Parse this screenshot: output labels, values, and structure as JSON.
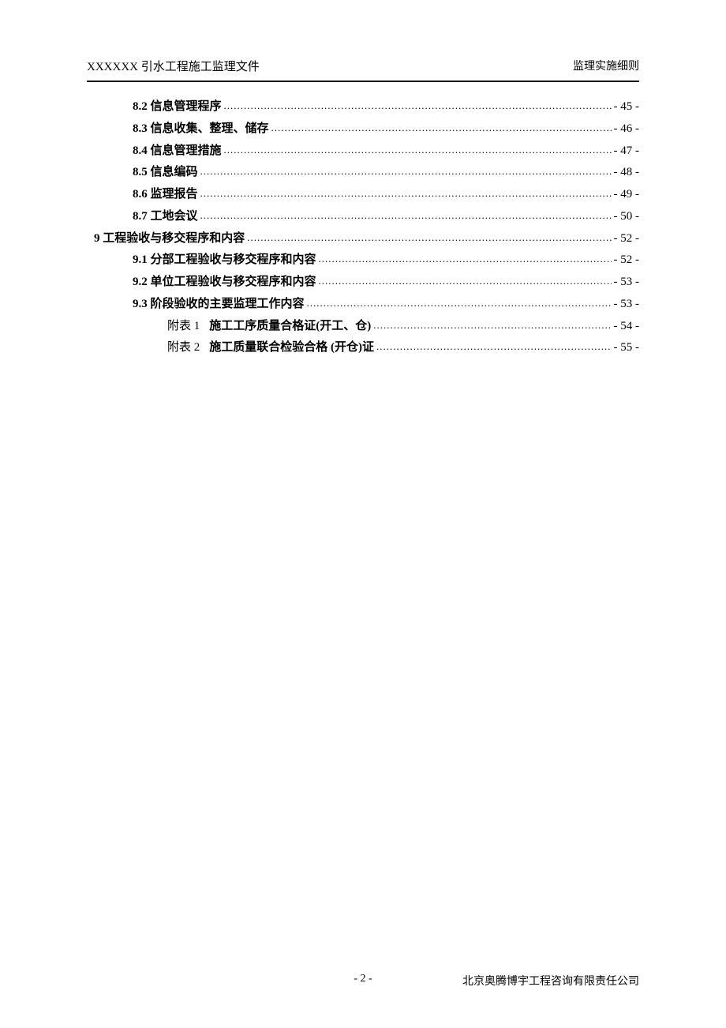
{
  "header": {
    "left": "XXXXXX 引水工程施工监理文件",
    "right": "监理实施细则"
  },
  "toc": [
    {
      "level": 1,
      "num": "8.2",
      "title": "信息管理程序",
      "page": "- 45 -",
      "bold": true
    },
    {
      "level": 1,
      "num": "8.3",
      "title": "信息收集、整理、储存",
      "page": "- 46 -",
      "bold": true
    },
    {
      "level": 1,
      "num": "8.4",
      "title": "信息管理措施",
      "page": "- 47 -",
      "bold": true
    },
    {
      "level": 1,
      "num": "8.5",
      "title": "信息编码",
      "page": "- 48 -",
      "bold": true
    },
    {
      "level": 1,
      "num": "8.6",
      "title": "监理报告",
      "page": "- 49 -",
      "bold": true
    },
    {
      "level": 1,
      "num": "8.7",
      "title": "工地会议",
      "page": "- 50 -",
      "bold": true
    },
    {
      "level": 0,
      "num": "9",
      "title": "工程验收与移交程序和内容",
      "page": "- 52 -",
      "bold": true
    },
    {
      "level": 1,
      "num": "9.1",
      "title": "分部工程验收与移交程序和内容",
      "page": "- 52 -",
      "bold": true
    },
    {
      "level": 1,
      "num": "9.2",
      "title": "单位工程验收与移交程序和内容",
      "page": "- 53 -",
      "bold": true
    },
    {
      "level": 1,
      "num": "9.3",
      "title": "阶段验收的主要监理工作内容",
      "page": "- 53 -",
      "bold": true
    },
    {
      "level": 2,
      "prefix": "附表 1",
      "title": "施工工序质量合格证(开工、仓)",
      "page": "- 54 -",
      "bold": false
    },
    {
      "level": 2,
      "prefix": "附表 2",
      "title": "施工质量联合检验合格 (开仓)证",
      "page": "- 55 -",
      "bold": false
    }
  ],
  "footer": {
    "pageNum": "- 2 -",
    "right": "北京奥腾博宇工程咨询有限责任公司"
  }
}
